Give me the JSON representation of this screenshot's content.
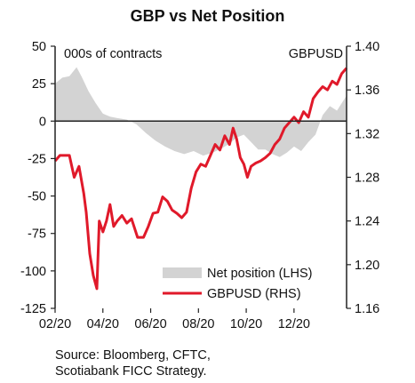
{
  "chart_data": {
    "type": "area+line",
    "title": "GBP vs Net Position",
    "left_axis_label": "000s of contracts",
    "right_axis_label": "GBPUSD",
    "left_ylim": [
      -125,
      50
    ],
    "left_ticks": [
      50,
      25,
      0,
      -25,
      -50,
      -75,
      -100,
      -125
    ],
    "right_ylim": [
      1.16,
      1.4
    ],
    "right_ticks": [
      "1.40",
      "1.36",
      "1.32",
      "1.28",
      "1.24",
      "1.20",
      "1.16"
    ],
    "x_ticks": [
      "02/20",
      "04/20",
      "06/20",
      "08/20",
      "10/20",
      "12/20"
    ],
    "x_range_months": [
      0,
      12.2
    ],
    "legend": {
      "placement": "bottom-right",
      "items": [
        "Net position (LHS)",
        "GBPUSD (RHS)"
      ]
    },
    "colors": {
      "area": "#d3d3d3",
      "line": "#e0192a",
      "axis": "#222222"
    },
    "series": [
      {
        "name": "Net position (LHS)",
        "axis": "left",
        "x": [
          0,
          0.3,
          0.6,
          0.9,
          1.1,
          1.4,
          1.7,
          2.0,
          2.3,
          2.6,
          3.0,
          3.4,
          3.8,
          4.2,
          4.6,
          5.0,
          5.4,
          5.8,
          6.2,
          6.6,
          7.0,
          7.3,
          7.6,
          7.9,
          8.2,
          8.5,
          8.8,
          9.1,
          9.4,
          9.7,
          10.0,
          10.3,
          10.6,
          10.9,
          11.2,
          11.5,
          11.8,
          12.2
        ],
        "values": [
          25,
          29,
          30,
          36,
          30,
          20,
          12,
          5,
          3,
          2,
          1,
          -2,
          -8,
          -13,
          -17,
          -20,
          -22,
          -20,
          -23,
          -21,
          -18,
          -15,
          -11,
          -9,
          -14,
          -19,
          -19,
          -22,
          -24,
          -21,
          -17,
          -20,
          -14,
          -9,
          4,
          10,
          7,
          17
        ]
      },
      {
        "name": "GBPUSD (RHS)",
        "axis": "right",
        "x": [
          0,
          0.2,
          0.4,
          0.6,
          0.8,
          1.0,
          1.2,
          1.3,
          1.45,
          1.6,
          1.75,
          1.85,
          2.0,
          2.15,
          2.3,
          2.45,
          2.6,
          2.8,
          3.0,
          3.2,
          3.45,
          3.7,
          3.9,
          4.1,
          4.3,
          4.5,
          4.7,
          4.9,
          5.1,
          5.3,
          5.5,
          5.7,
          5.9,
          6.1,
          6.3,
          6.5,
          6.7,
          6.9,
          7.1,
          7.3,
          7.45,
          7.6,
          7.75,
          7.9,
          8.05,
          8.2,
          8.4,
          8.6,
          8.8,
          9.0,
          9.2,
          9.4,
          9.6,
          9.8,
          10.0,
          10.2,
          10.4,
          10.6,
          10.8,
          11.0,
          11.2,
          11.4,
          11.6,
          11.8,
          12.0,
          12.2
        ],
        "values": [
          1.295,
          1.3,
          1.3,
          1.3,
          1.28,
          1.29,
          1.265,
          1.248,
          1.21,
          1.19,
          1.178,
          1.24,
          1.23,
          1.24,
          1.255,
          1.235,
          1.24,
          1.245,
          1.238,
          1.242,
          1.225,
          1.225,
          1.235,
          1.247,
          1.248,
          1.262,
          1.258,
          1.25,
          1.247,
          1.243,
          1.248,
          1.27,
          1.285,
          1.292,
          1.29,
          1.3,
          1.31,
          1.305,
          1.318,
          1.31,
          1.325,
          1.315,
          1.298,
          1.292,
          1.28,
          1.29,
          1.293,
          1.295,
          1.298,
          1.302,
          1.31,
          1.315,
          1.325,
          1.33,
          1.335,
          1.33,
          1.34,
          1.335,
          1.352,
          1.358,
          1.363,
          1.36,
          1.368,
          1.365,
          1.375,
          1.38
        ]
      }
    ]
  },
  "source": {
    "line1": "Source: Bloomberg, CFTC,",
    "line2": "Scotiabank FICC  Strategy."
  }
}
